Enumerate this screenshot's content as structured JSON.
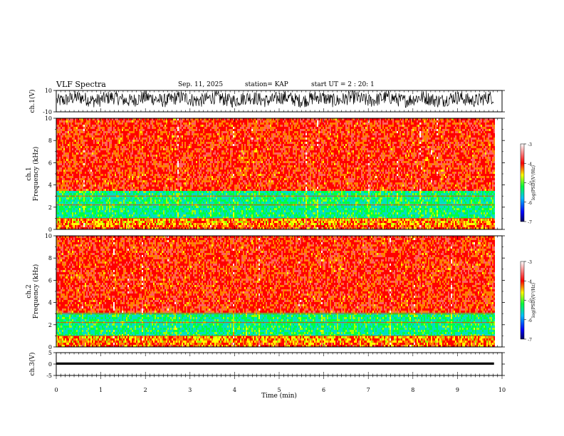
{
  "header": {
    "title": "VLF Spectra",
    "date": "Sep. 11, 2025",
    "station": "station= KAP",
    "start": "start  UT =   2 : 20: 1"
  },
  "chart_data": [
    {
      "type": "line",
      "name": "ch1-waveform",
      "ylabel": "ch.1(V)",
      "ylim": [
        -10,
        10
      ],
      "yticks": [
        "10",
        "-10"
      ],
      "xlim": [
        0,
        10
      ],
      "description_values": {
        "typical_range_V": [
          -6,
          10
        ],
        "data_end_min": 9.82
      }
    },
    {
      "type": "heatmap",
      "name": "ch1-spectrogram",
      "ylabel": "ch.1\nFrequency (kHz)",
      "ylim": [
        0,
        10
      ],
      "yticks": [
        "0",
        "2",
        "4",
        "6",
        "8",
        "10"
      ],
      "xlim": [
        0,
        10
      ],
      "data_end_min": 9.82,
      "bands": [
        {
          "from_khz": 0,
          "to_khz": 0.4,
          "level": -4.0
        },
        {
          "from_khz": 0.4,
          "to_khz": 1.0,
          "level": -4.2
        },
        {
          "from_khz": 1.0,
          "to_khz": 3.4,
          "level": -5.3
        },
        {
          "from_khz": 3.4,
          "to_khz": 10,
          "level": -3.6
        }
      ],
      "colorbar": {
        "label": "log(PSD)(V²/Hz)",
        "min": -7,
        "max": -3,
        "ticks": [
          "-3",
          "-4",
          "-5",
          "-6",
          "-7"
        ]
      }
    },
    {
      "type": "heatmap",
      "name": "ch2-spectrogram",
      "ylabel": "ch.2\nFrequency (kHz)",
      "ylim": [
        0,
        10
      ],
      "yticks": [
        "0",
        "2",
        "4",
        "6",
        "8",
        "10"
      ],
      "xlim": [
        0,
        10
      ],
      "data_end_min": 9.82,
      "bands": [
        {
          "from_khz": 0,
          "to_khz": 0.4,
          "level": -4.0
        },
        {
          "from_khz": 0.4,
          "to_khz": 0.9,
          "level": -4.2
        },
        {
          "from_khz": 0.9,
          "to_khz": 3.0,
          "level": -5.3
        },
        {
          "from_khz": 3.0,
          "to_khz": 10,
          "level": -3.6
        }
      ],
      "colorbar": {
        "label": "log(PSD)(V²/Hz)",
        "min": -7,
        "max": -3,
        "ticks": [
          "-3",
          "-4",
          "-5",
          "-6",
          "-7"
        ]
      }
    },
    {
      "type": "line",
      "name": "ch3-waveform",
      "ylabel": "ch.3(V)",
      "ylim": [
        -5,
        5
      ],
      "yticks": [
        "5",
        "0",
        "-5"
      ],
      "xlim": [
        0,
        10
      ],
      "xlabel": "Time (min)",
      "xticks": [
        "0",
        "1",
        "2",
        "3",
        "4",
        "5",
        "6",
        "7",
        "8",
        "9",
        "10"
      ],
      "description_values": {
        "level_V": 0.2,
        "band_half_width_V": 0.5,
        "data_end_min": 9.82
      }
    }
  ],
  "colors": {
    "low": "#000080",
    "green": "#00e000",
    "yellow": "#ffff00",
    "red": "#ff0000",
    "white": "#ffffff"
  }
}
